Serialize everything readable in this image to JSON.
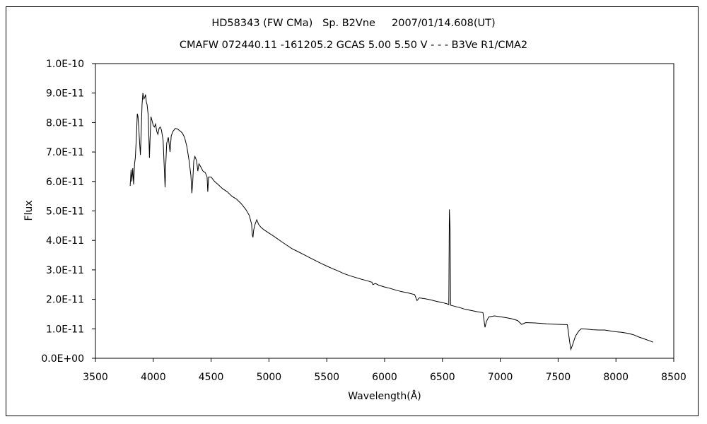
{
  "chart_data": {
    "type": "line",
    "title": "HD58343 (FW CMa)   Sp. B2Vne     2007/01/14.608(UT)",
    "subtitle": "CMAFW 072440.11 -161205.2 GCAS 5.00 5.50 V - - - B3Ve R1/CMA2",
    "xlabel": "Wavelength(Å)",
    "ylabel": "Flux",
    "xlim": [
      3500,
      8500
    ],
    "ylim": [
      0,
      1e-10
    ],
    "x_ticks": [
      "3500",
      "4000",
      "4500",
      "5000",
      "5500",
      "6000",
      "6500",
      "7000",
      "7500",
      "8000",
      "8500"
    ],
    "y_ticks": [
      "0.0E+00",
      "1.0E-11",
      "2.0E-11",
      "3.0E-11",
      "4.0E-11",
      "5.0E-11",
      "6.0E-11",
      "7.0E-11",
      "8.0E-11",
      "9.0E-11",
      "1.0E-10"
    ],
    "grid": false,
    "line_color": "#000000",
    "series": [
      {
        "values": [
          [
            3800,
            5.85
          ],
          [
            3808,
            6.4
          ],
          [
            3815,
            6.0
          ],
          [
            3823,
            6.45
          ],
          [
            3830,
            5.9
          ],
          [
            3838,
            6.6
          ],
          [
            3845,
            6.8
          ],
          [
            3855,
            7.6
          ],
          [
            3862,
            8.3
          ],
          [
            3868,
            8.2
          ],
          [
            3875,
            7.8
          ],
          [
            3882,
            7.3
          ],
          [
            3889,
            6.9
          ],
          [
            3895,
            7.6
          ],
          [
            3903,
            8.6
          ],
          [
            3910,
            9.0
          ],
          [
            3918,
            8.8
          ],
          [
            3926,
            8.85
          ],
          [
            3933,
            8.95
          ],
          [
            3940,
            8.7
          ],
          [
            3947,
            8.6
          ],
          [
            3955,
            8.3
          ],
          [
            3962,
            7.5
          ],
          [
            3967,
            6.8
          ],
          [
            3972,
            7.4
          ],
          [
            3980,
            8.2
          ],
          [
            3990,
            8.05
          ],
          [
            4000,
            7.9
          ],
          [
            4010,
            7.85
          ],
          [
            4020,
            7.95
          ],
          [
            4030,
            7.7
          ],
          [
            4040,
            7.6
          ],
          [
            4050,
            7.8
          ],
          [
            4060,
            7.85
          ],
          [
            4070,
            7.75
          ],
          [
            4085,
            7.4
          ],
          [
            4095,
            6.5
          ],
          [
            4102,
            5.8
          ],
          [
            4108,
            6.6
          ],
          [
            4116,
            7.3
          ],
          [
            4130,
            7.5
          ],
          [
            4145,
            7.0
          ],
          [
            4155,
            7.55
          ],
          [
            4170,
            7.7
          ],
          [
            4190,
            7.8
          ],
          [
            4210,
            7.78
          ],
          [
            4230,
            7.72
          ],
          [
            4250,
            7.65
          ],
          [
            4270,
            7.5
          ],
          [
            4290,
            7.2
          ],
          [
            4310,
            6.7
          ],
          [
            4325,
            6.2
          ],
          [
            4334,
            5.6
          ],
          [
            4341,
            6.0
          ],
          [
            4350,
            6.7
          ],
          [
            4360,
            6.85
          ],
          [
            4375,
            6.7
          ],
          [
            4385,
            6.35
          ],
          [
            4395,
            6.6
          ],
          [
            4410,
            6.5
          ],
          [
            4430,
            6.35
          ],
          [
            4450,
            6.3
          ],
          [
            4465,
            6.15
          ],
          [
            4471,
            5.65
          ],
          [
            4478,
            6.15
          ],
          [
            4500,
            6.15
          ],
          [
            4530,
            6.0
          ],
          [
            4560,
            5.9
          ],
          [
            4600,
            5.75
          ],
          [
            4640,
            5.65
          ],
          [
            4680,
            5.5
          ],
          [
            4720,
            5.4
          ],
          [
            4760,
            5.25
          ],
          [
            4800,
            5.05
          ],
          [
            4830,
            4.85
          ],
          [
            4850,
            4.55
          ],
          [
            4856,
            4.2
          ],
          [
            4862,
            4.1
          ],
          [
            4868,
            4.35
          ],
          [
            4880,
            4.55
          ],
          [
            4895,
            4.7
          ],
          [
            4910,
            4.55
          ],
          [
            4930,
            4.45
          ],
          [
            4960,
            4.35
          ],
          [
            5000,
            4.25
          ],
          [
            5050,
            4.12
          ],
          [
            5100,
            3.98
          ],
          [
            5150,
            3.85
          ],
          [
            5200,
            3.72
          ],
          [
            5250,
            3.62
          ],
          [
            5300,
            3.52
          ],
          [
            5350,
            3.42
          ],
          [
            5400,
            3.32
          ],
          [
            5450,
            3.22
          ],
          [
            5500,
            3.13
          ],
          [
            5550,
            3.04
          ],
          [
            5600,
            2.96
          ],
          [
            5650,
            2.87
          ],
          [
            5700,
            2.8
          ],
          [
            5750,
            2.74
          ],
          [
            5800,
            2.68
          ],
          [
            5850,
            2.63
          ],
          [
            5890,
            2.58
          ],
          [
            5900,
            2.5
          ],
          [
            5920,
            2.54
          ],
          [
            5950,
            2.48
          ],
          [
            6000,
            2.42
          ],
          [
            6050,
            2.37
          ],
          [
            6100,
            2.31
          ],
          [
            6150,
            2.26
          ],
          [
            6200,
            2.22
          ],
          [
            6260,
            2.16
          ],
          [
            6280,
            1.96
          ],
          [
            6300,
            2.05
          ],
          [
            6350,
            2.02
          ],
          [
            6400,
            1.98
          ],
          [
            6450,
            1.93
          ],
          [
            6500,
            1.89
          ],
          [
            6540,
            1.85
          ],
          [
            6555,
            1.82
          ],
          [
            6560,
            5.05
          ],
          [
            6566,
            4.4
          ],
          [
            6570,
            1.8
          ],
          [
            6600,
            1.77
          ],
          [
            6650,
            1.72
          ],
          [
            6700,
            1.66
          ],
          [
            6750,
            1.62
          ],
          [
            6800,
            1.58
          ],
          [
            6850,
            1.55
          ],
          [
            6868,
            1.05
          ],
          [
            6880,
            1.25
          ],
          [
            6900,
            1.4
          ],
          [
            6950,
            1.44
          ],
          [
            7000,
            1.41
          ],
          [
            7050,
            1.38
          ],
          [
            7100,
            1.34
          ],
          [
            7150,
            1.28
          ],
          [
            7185,
            1.15
          ],
          [
            7220,
            1.21
          ],
          [
            7300,
            1.2
          ],
          [
            7400,
            1.17
          ],
          [
            7500,
            1.15
          ],
          [
            7580,
            1.14
          ],
          [
            7600,
            0.55
          ],
          [
            7610,
            0.3
          ],
          [
            7625,
            0.45
          ],
          [
            7650,
            0.75
          ],
          [
            7680,
            0.93
          ],
          [
            7700,
            1.0
          ],
          [
            7750,
            0.99
          ],
          [
            7800,
            0.97
          ],
          [
            7850,
            0.96
          ],
          [
            7900,
            0.96
          ],
          [
            7950,
            0.93
          ],
          [
            8000,
            0.9
          ],
          [
            8050,
            0.88
          ],
          [
            8100,
            0.85
          ],
          [
            8150,
            0.8
          ],
          [
            8200,
            0.72
          ],
          [
            8250,
            0.65
          ],
          [
            8300,
            0.58
          ],
          [
            8320,
            0.55
          ]
        ],
        "y_scale_note_value": 1e-11
      }
    ]
  }
}
